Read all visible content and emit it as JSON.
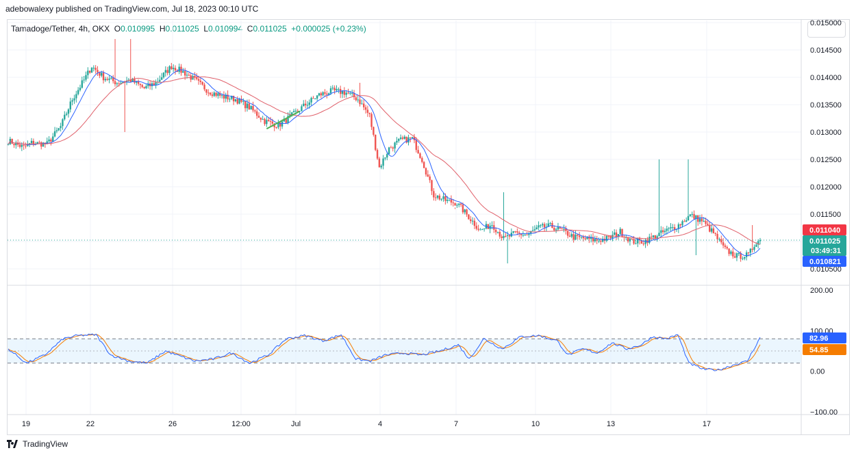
{
  "header": {
    "published_text": "adebowalexy published on TradingView.com, Jul 18, 2023 00:10 UTC"
  },
  "legend": {
    "pair": "Tamadoge/Tether, 4h, OKX",
    "o_label": "O",
    "o_value": "0.010995",
    "h_label": "H",
    "h_value": "0.011025",
    "l_label": "L",
    "l_value": "0.010994",
    "c_label": "C",
    "c_value": "0.011025",
    "change": "+0.000025 (+0.23%)"
  },
  "footer": {
    "brand": "TradingView"
  },
  "colors": {
    "up": "#26a69a",
    "down": "#ef5350",
    "ma_fast": "#2962ff",
    "ma_slow": "#e0606a",
    "trendline": "#4caf50",
    "stoch_k": "#2962ff",
    "stoch_d": "#f57c00",
    "band_fill": "#e3f2fd",
    "grid": "#f0f3fa"
  },
  "chart_data": [
    {
      "type": "candlestick",
      "x_ticks": [
        "19",
        "22",
        "26",
        "12:00",
        "Jul",
        "4",
        "7",
        "10",
        "13",
        "17"
      ],
      "y_ticks": [
        "0.010500",
        "0.011000",
        "0.011500",
        "0.012000",
        "0.012500",
        "0.013000",
        "0.013500",
        "0.014000",
        "0.014500",
        "0.015000"
      ],
      "ylim": [
        0.0105,
        0.015
      ],
      "price_tags": [
        {
          "value": "0.011040",
          "color": "#f23645"
        },
        {
          "value": "0.011025",
          "sub": "03:49:31",
          "color": "#26a69a"
        },
        {
          "value": "0.010821",
          "color": "#2962ff"
        }
      ],
      "last_price": 0.011025,
      "anchors": [
        [
          0,
          0.01284
        ],
        [
          8,
          0.01272
        ],
        [
          12,
          0.0128
        ],
        [
          20,
          0.01278
        ],
        [
          27,
          0.0131
        ],
        [
          33,
          0.0136
        ],
        [
          39,
          0.01395
        ],
        [
          43,
          0.0142
        ],
        [
          49,
          0.014
        ],
        [
          56,
          0.0139
        ],
        [
          63,
          0.01395
        ],
        [
          70,
          0.0138
        ],
        [
          76,
          0.0139
        ],
        [
          84,
          0.0142
        ],
        [
          90,
          0.0141
        ],
        [
          96,
          0.01395
        ],
        [
          103,
          0.01375
        ],
        [
          110,
          0.01365
        ],
        [
          117,
          0.0136
        ],
        [
          124,
          0.01345
        ],
        [
          132,
          0.0132
        ],
        [
          139,
          0.01312
        ],
        [
          146,
          0.0133
        ],
        [
          153,
          0.0135
        ],
        [
          160,
          0.01368
        ],
        [
          167,
          0.01375
        ],
        [
          174,
          0.01372
        ],
        [
          180,
          0.0136
        ],
        [
          186,
          0.0133
        ],
        [
          191,
          0.01235
        ],
        [
          196,
          0.0127
        ],
        [
          202,
          0.01285
        ],
        [
          208,
          0.01288
        ],
        [
          213,
          0.0125
        ],
        [
          219,
          0.01185
        ],
        [
          225,
          0.01175
        ],
        [
          231,
          0.0117
        ],
        [
          237,
          0.01145
        ],
        [
          243,
          0.0112
        ],
        [
          249,
          0.01132
        ],
        [
          255,
          0.01105
        ],
        [
          261,
          0.01115
        ],
        [
          267,
          0.01112
        ],
        [
          273,
          0.01125
        ],
        [
          279,
          0.01128
        ],
        [
          285,
          0.0112
        ],
        [
          291,
          0.01108
        ],
        [
          297,
          0.01105
        ],
        [
          303,
          0.01102
        ],
        [
          309,
          0.01106
        ],
        [
          315,
          0.01118
        ],
        [
          321,
          0.011
        ],
        [
          327,
          0.011
        ],
        [
          333,
          0.0111
        ],
        [
          339,
          0.0112
        ],
        [
          345,
          0.0113
        ],
        [
          351,
          0.01148
        ],
        [
          357,
          0.01138
        ],
        [
          363,
          0.01115
        ],
        [
          369,
          0.01085
        ],
        [
          375,
          0.01073
        ],
        [
          381,
          0.01075
        ],
        [
          385,
          0.011
        ],
        [
          387,
          0.01102
        ]
      ],
      "spikes": [
        {
          "i": 55,
          "high": 0.0147
        },
        {
          "i": 63,
          "high": 0.0147
        },
        {
          "i": 60,
          "low": 0.013
        },
        {
          "i": 230,
          "high": 0.01162
        },
        {
          "i": 255,
          "high": 0.0119
        },
        {
          "i": 257,
          "low": 0.0106
        },
        {
          "i": 335,
          "high": 0.0125
        },
        {
          "i": 350,
          "high": 0.0125
        },
        {
          "i": 354,
          "low": 0.01075
        },
        {
          "i": 383,
          "high": 0.0113
        },
        {
          "i": 181,
          "high": 0.0139
        }
      ]
    },
    {
      "type": "stochastic",
      "y_ticks": [
        "200.00",
        "100.00",
        "0.00",
        "−100.00"
      ],
      "ylim": [
        -100,
        200
      ],
      "overbought": 80,
      "oversold": 20,
      "mid": 50,
      "k_value": "82.96",
      "d_value": "54.85",
      "k_anchors": [
        [
          0,
          55
        ],
        [
          10,
          20
        ],
        [
          20,
          40
        ],
        [
          30,
          80
        ],
        [
          38,
          88
        ],
        [
          48,
          90
        ],
        [
          56,
          40
        ],
        [
          66,
          25
        ],
        [
          76,
          20
        ],
        [
          86,
          50
        ],
        [
          92,
          40
        ],
        [
          102,
          25
        ],
        [
          112,
          30
        ],
        [
          122,
          45
        ],
        [
          132,
          20
        ],
        [
          142,
          40
        ],
        [
          152,
          80
        ],
        [
          162,
          88
        ],
        [
          172,
          75
        ],
        [
          182,
          90
        ],
        [
          190,
          30
        ],
        [
          198,
          25
        ],
        [
          206,
          40
        ],
        [
          216,
          45
        ],
        [
          226,
          40
        ],
        [
          236,
          50
        ],
        [
          246,
          65
        ],
        [
          252,
          30
        ],
        [
          260,
          80
        ],
        [
          270,
          55
        ],
        [
          280,
          85
        ],
        [
          290,
          88
        ],
        [
          300,
          75
        ],
        [
          306,
          40
        ],
        [
          314,
          55
        ],
        [
          322,
          45
        ],
        [
          330,
          70
        ],
        [
          338,
          55
        ],
        [
          346,
          65
        ],
        [
          352,
          85
        ],
        [
          360,
          80
        ],
        [
          366,
          90
        ],
        [
          372,
          20
        ],
        [
          380,
          5
        ],
        [
          388,
          3
        ],
        [
          396,
          15
        ],
        [
          404,
          25
        ],
        [
          411,
          83
        ]
      ]
    }
  ]
}
